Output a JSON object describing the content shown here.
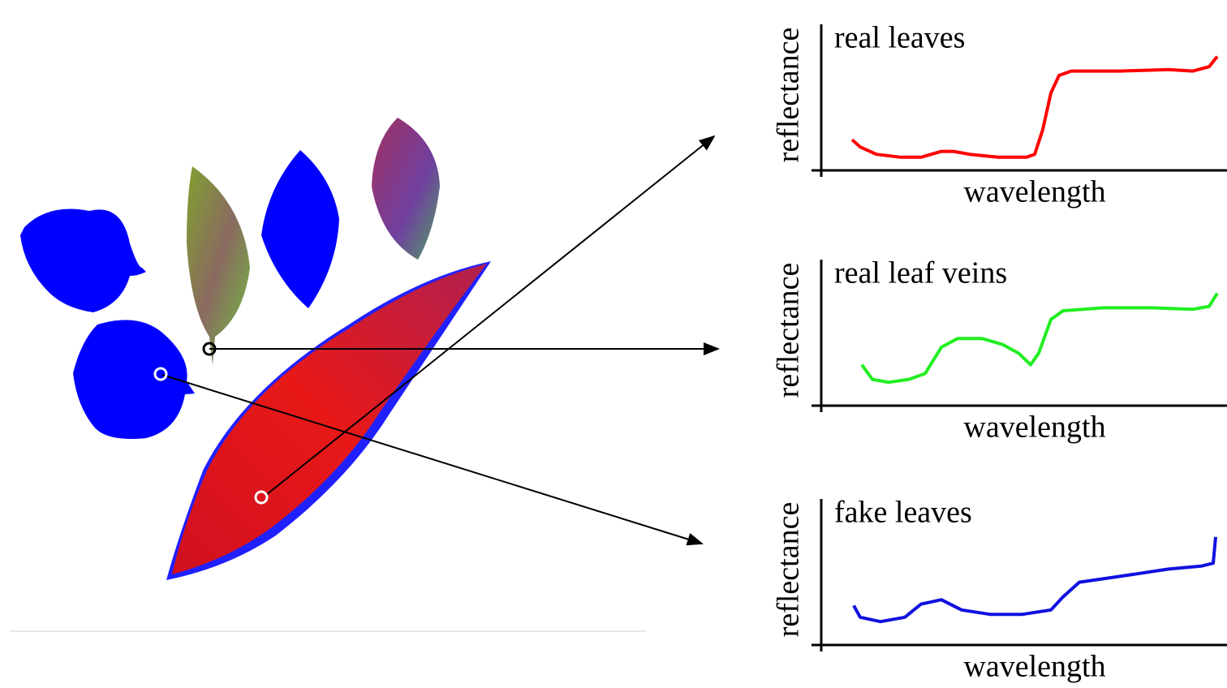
{
  "chart_data": [
    {
      "type": "line",
      "title": "real leaves",
      "xlabel": "wavelength",
      "ylabel": "reflectance",
      "color": "#ff0000",
      "x": [
        7.6,
        9.6,
        13.6,
        19.6,
        24.6,
        29.6,
        32.6,
        36.6,
        43.6,
        50.6,
        52.6,
        54.6,
        56.6,
        58.6,
        61.6,
        73.6,
        85.6,
        91.6,
        95.6,
        97.6
      ],
      "values": [
        0.21,
        0.16,
        0.11,
        0.09,
        0.09,
        0.13,
        0.13,
        0.11,
        0.09,
        0.09,
        0.11,
        0.28,
        0.53,
        0.65,
        0.68,
        0.68,
        0.69,
        0.68,
        0.71,
        0.78
      ],
      "xlim": [
        0,
        100
      ],
      "ylim": [
        0,
        1
      ]
    },
    {
      "type": "line",
      "title": "real leaf veins",
      "xlabel": "wavelength",
      "ylabel": "reflectance",
      "color": "#22ee22",
      "x": [
        10,
        12.6,
        16.6,
        21.6,
        25.6,
        29.6,
        33.6,
        39.6,
        44.6,
        48.6,
        51.6,
        53.6,
        56.6,
        59.6,
        69.6,
        81.6,
        91.6,
        95.6,
        97.6
      ],
      "values": [
        0.28,
        0.18,
        0.16,
        0.18,
        0.22,
        0.4,
        0.46,
        0.46,
        0.42,
        0.36,
        0.28,
        0.36,
        0.59,
        0.65,
        0.67,
        0.67,
        0.66,
        0.68,
        0.77
      ],
      "xlim": [
        0,
        100
      ],
      "ylim": [
        0,
        1
      ]
    },
    {
      "type": "line",
      "title": "fake leaves",
      "xlabel": "wavelength",
      "ylabel": "reflectance",
      "color": "#1010e0",
      "x": [
        8,
        9.6,
        14.6,
        20.6,
        24.6,
        29.6,
        34.6,
        41.6,
        49.6,
        56.6,
        59.6,
        63.6,
        73.6,
        85.6,
        93.6,
        96.6,
        97.2
      ],
      "values": [
        0.27,
        0.19,
        0.16,
        0.19,
        0.28,
        0.31,
        0.24,
        0.21,
        0.21,
        0.24,
        0.33,
        0.43,
        0.47,
        0.52,
        0.54,
        0.56,
        0.74
      ],
      "xlim": [
        0,
        100
      ],
      "ylim": [
        0,
        1
      ]
    }
  ]
}
